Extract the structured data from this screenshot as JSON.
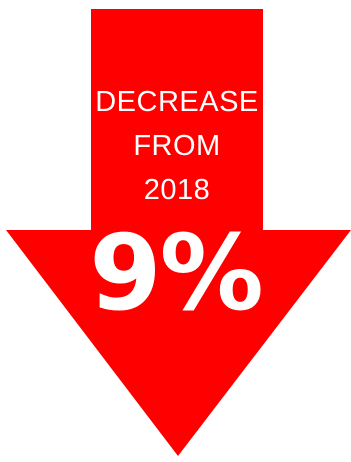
{
  "graphic": {
    "caption_lines": [
      "DECREASE",
      "FROM",
      "2018"
    ],
    "value_text": "9%",
    "icon": "down-arrow-icon",
    "colors": {
      "arrow": "#ff0000",
      "text": "#ffffff",
      "background": "#ffffff"
    }
  }
}
